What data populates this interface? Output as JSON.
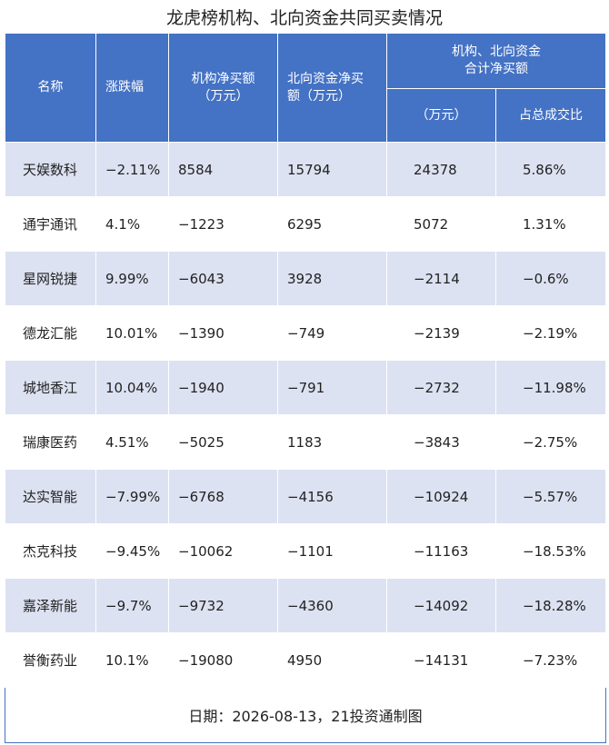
{
  "title": "龙虎榜机构、北向资金共同买卖情况",
  "headers": {
    "name": "名称",
    "change": "涨跌幅",
    "inst_line1": "机构净买额",
    "inst_line2": "（万元）",
    "north_line1": "北向资金净买",
    "north_line2": "额（万元）",
    "combined_line1": "机构、北向资金",
    "combined_line2": "合计净买额",
    "combined_sub_amount": "（万元）",
    "combined_sub_ratio": "占总成交比"
  },
  "rows": [
    {
      "name": "天娱数科",
      "change": "−2.11%",
      "inst": "8584",
      "north": "15794",
      "total": "24378",
      "ratio": "5.86%"
    },
    {
      "name": "通宇通讯",
      "change": "4.1%",
      "inst": "−1223",
      "north": "6295",
      "total": "5072",
      "ratio": "1.31%"
    },
    {
      "name": "星网锐捷",
      "change": "9.99%",
      "inst": "−6043",
      "north": "3928",
      "total": "−2114",
      "ratio": "−0.6%"
    },
    {
      "name": "德龙汇能",
      "change": "10.01%",
      "inst": "−1390",
      "north": "−749",
      "total": "−2139",
      "ratio": "−2.19%"
    },
    {
      "name": "城地香江",
      "change": "10.04%",
      "inst": "−1940",
      "north": "−791",
      "total": "−2732",
      "ratio": "−11.98%"
    },
    {
      "name": "瑞康医药",
      "change": "4.51%",
      "inst": "−5025",
      "north": "1183",
      "total": "−3843",
      "ratio": "−2.75%"
    },
    {
      "name": "达实智能",
      "change": "−7.99%",
      "inst": "−6768",
      "north": "−4156",
      "total": "−10924",
      "ratio": "−5.57%"
    },
    {
      "name": "杰克科技",
      "change": "−9.45%",
      "inst": "−10062",
      "north": "−1101",
      "total": "−11163",
      "ratio": "−18.53%"
    },
    {
      "name": "嘉泽新能",
      "change": "−9.7%",
      "inst": "−9732",
      "north": "−4360",
      "total": "−14092",
      "ratio": "−18.28%"
    },
    {
      "name": "誉衡药业",
      "change": "10.1%",
      "inst": "−19080",
      "north": "4950",
      "total": "−14131",
      "ratio": "−7.23%"
    }
  ],
  "footer": "日期：2026-08-13，21投资通制图",
  "colors": {
    "header_bg": "#4472c4",
    "stripe_bg": "#dde2f2"
  }
}
